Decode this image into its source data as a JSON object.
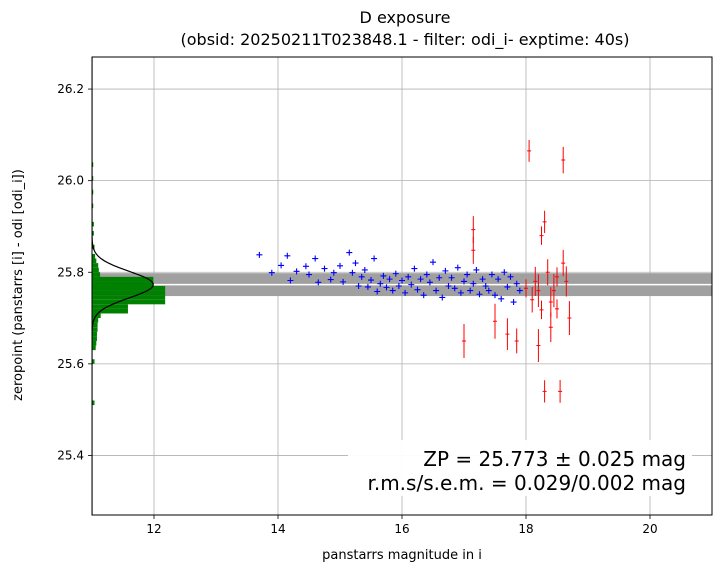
{
  "chart_data": {
    "type": "scatter",
    "title": "D exposure",
    "subtitle": "(obsid: 20250211T023848.1 - filter: odi_i- exptime: 40s)",
    "xlabel": "panstarrs magnitude in i",
    "ylabel": "zeropoint (panstarrs [i] - odi [odi_i])",
    "xlim": [
      11.0,
      21.0
    ],
    "ylim": [
      25.27,
      26.27
    ],
    "xticks": [
      "12",
      "14",
      "16",
      "18",
      "20"
    ],
    "yticks": [
      "25.4",
      "25.6",
      "25.8",
      "26.0",
      "26.2"
    ],
    "grid": true,
    "zeropoint": 25.773,
    "zeropoint_err": 0.025,
    "annotation_line1": "ZP = 25.773 ± 0.025 mag",
    "annotation_line2": "r.m.s/s.e.m. = 0.029/0.002 mag",
    "colors": {
      "good_points": "#0000ff",
      "rejected_points": "#ff0000",
      "histogram": "#008000",
      "band": "#a0a0a0",
      "band_line": "#ffffff",
      "gaussian": "#000000"
    },
    "histogram": {
      "bin_width": 0.01,
      "bins": [
        {
          "y": 25.51,
          "count": 0.04
        },
        {
          "y": 25.6,
          "count": 0.04
        },
        {
          "y": 25.63,
          "count": 0.06
        },
        {
          "y": 25.64,
          "count": 0.07
        },
        {
          "y": 25.65,
          "count": 0.08
        },
        {
          "y": 25.66,
          "count": 0.08
        },
        {
          "y": 25.67,
          "count": 0.09
        },
        {
          "y": 25.68,
          "count": 0.09
        },
        {
          "y": 25.69,
          "count": 0.1
        },
        {
          "y": 25.7,
          "count": 0.14
        },
        {
          "y": 25.71,
          "count": 0.58
        },
        {
          "y": 25.72,
          "count": 0.58
        },
        {
          "y": 25.73,
          "count": 1.18
        },
        {
          "y": 25.74,
          "count": 1.18
        },
        {
          "y": 25.75,
          "count": 1.18
        },
        {
          "y": 25.76,
          "count": 1.18
        },
        {
          "y": 25.77,
          "count": 0.99
        },
        {
          "y": 25.78,
          "count": 0.99
        },
        {
          "y": 25.79,
          "count": 0.13
        },
        {
          "y": 25.8,
          "count": 0.11
        },
        {
          "y": 25.81,
          "count": 0.1
        },
        {
          "y": 25.82,
          "count": 0.07
        },
        {
          "y": 25.83,
          "count": 0.05
        },
        {
          "y": 25.85,
          "count": 0.04
        },
        {
          "y": 25.88,
          "count": 0.03
        },
        {
          "y": 25.9,
          "count": 0.03
        },
        {
          "y": 25.94,
          "count": 0.02
        },
        {
          "y": 25.97,
          "count": 0.02
        },
        {
          "y": 26.0,
          "count": 0.02
        },
        {
          "y": 26.03,
          "count": 0.02
        }
      ],
      "gaussian": {
        "mu": 25.773,
        "sigma": 0.029,
        "peak": 0.99
      }
    },
    "series": [
      {
        "marker": "plus",
        "points": [
          [
            13.7,
            25.838
          ],
          [
            13.9,
            25.799
          ],
          [
            14.05,
            25.815
          ],
          [
            14.15,
            25.836
          ],
          [
            14.2,
            25.782
          ],
          [
            14.3,
            25.802
          ],
          [
            14.45,
            25.813
          ],
          [
            14.5,
            25.795
          ],
          [
            14.6,
            25.83
          ],
          [
            14.65,
            25.778
          ],
          [
            14.75,
            25.808
          ],
          [
            14.85,
            25.784
          ],
          [
            14.9,
            25.799
          ],
          [
            15.0,
            25.814
          ],
          [
            15.05,
            25.779
          ],
          [
            15.15,
            25.843
          ],
          [
            15.2,
            25.799
          ],
          [
            15.25,
            25.82
          ],
          [
            15.3,
            25.77
          ],
          [
            15.35,
            25.79
          ],
          [
            15.4,
            25.805
          ],
          [
            15.45,
            25.768
          ],
          [
            15.5,
            25.783
          ],
          [
            15.55,
            25.83
          ],
          [
            15.6,
            25.758
          ],
          [
            15.65,
            25.775
          ],
          [
            15.7,
            25.792
          ],
          [
            15.75,
            25.767
          ],
          [
            15.8,
            25.785
          ],
          [
            15.85,
            25.76
          ],
          [
            15.9,
            25.797
          ],
          [
            15.95,
            25.77
          ],
          [
            16.0,
            25.782
          ],
          [
            16.05,
            25.755
          ],
          [
            16.1,
            25.79
          ],
          [
            16.15,
            25.773
          ],
          [
            16.2,
            25.808
          ],
          [
            16.25,
            25.762
          ],
          [
            16.3,
            25.785
          ],
          [
            16.35,
            25.75
          ],
          [
            16.4,
            25.795
          ],
          [
            16.45,
            25.778
          ],
          [
            16.5,
            25.822
          ],
          [
            16.55,
            25.76
          ],
          [
            16.6,
            25.788
          ],
          [
            16.65,
            25.745
          ],
          [
            16.7,
            25.803
          ],
          [
            16.75,
            25.77
          ],
          [
            16.8,
            25.788
          ],
          [
            16.85,
            25.765
          ],
          [
            16.9,
            25.81
          ],
          [
            16.95,
            25.755
          ],
          [
            17.0,
            25.78
          ],
          [
            17.05,
            25.795
          ],
          [
            17.1,
            25.76
          ],
          [
            17.15,
            25.775
          ],
          [
            17.2,
            25.805
          ],
          [
            17.25,
            25.752
          ],
          [
            17.3,
            25.785
          ],
          [
            17.35,
            25.77
          ],
          [
            17.4,
            25.76
          ],
          [
            17.45,
            25.795
          ],
          [
            17.5,
            25.75
          ],
          [
            17.55,
            25.785
          ],
          [
            17.6,
            25.742
          ],
          [
            17.65,
            25.8
          ],
          [
            17.7,
            25.768
          ],
          [
            17.75,
            25.79
          ],
          [
            17.8,
            25.735
          ],
          [
            17.85,
            25.775
          ],
          [
            17.9,
            25.76
          ]
        ]
      },
      {
        "marker": "errorbar",
        "points": [
          [
            17.0,
            25.65
          ],
          [
            17.15,
            25.893
          ],
          [
            17.15,
            25.848
          ],
          [
            17.5,
            25.693
          ],
          [
            17.7,
            25.665
          ],
          [
            17.85,
            25.65
          ],
          [
            18.0,
            25.765
          ],
          [
            18.05,
            26.065
          ],
          [
            18.1,
            25.74
          ],
          [
            18.15,
            25.78
          ],
          [
            18.2,
            25.76
          ],
          [
            18.25,
            25.718
          ],
          [
            18.3,
            25.91
          ],
          [
            18.35,
            25.8
          ],
          [
            18.4,
            25.735
          ],
          [
            18.45,
            25.76
          ],
          [
            18.5,
            25.79
          ],
          [
            18.55,
            25.54
          ],
          [
            18.6,
            26.045
          ],
          [
            18.65,
            25.78
          ],
          [
            18.7,
            25.7
          ],
          [
            18.2,
            25.64
          ],
          [
            18.3,
            25.54
          ],
          [
            18.4,
            25.68
          ],
          [
            18.5,
            25.72
          ],
          [
            18.6,
            25.82
          ],
          [
            18.25,
            25.88
          ]
        ]
      }
    ]
  }
}
